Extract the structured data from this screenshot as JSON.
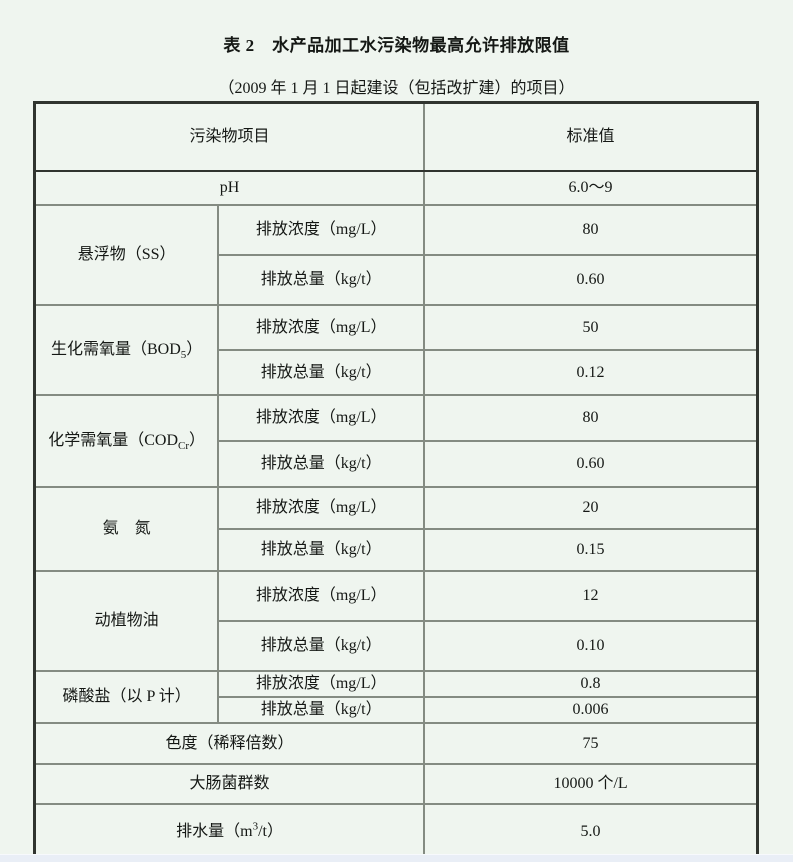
{
  "meta": {
    "page_bg_color": "#eff5ef",
    "bottom_strip_color": "#e9eef6",
    "table_border_color": "#848b82",
    "outer_border_color": "#30342f"
  },
  "title": "表 2　水产品加工水污染物最高允许排放限值",
  "subtitle": "（2009 年 1 月 1 日起建设（包括改扩建）的项目）",
  "table": {
    "header": {
      "pollutant_col": "污染物项目",
      "value_col": "标准值"
    },
    "ph": {
      "label": "pH",
      "value": "6.0～9"
    },
    "groups": [
      {
        "name": {
          "pre": "悬浮物（SS）",
          "sub": "",
          "post": ""
        },
        "concentration": {
          "label": "排放浓度（mg/L）",
          "value": "80"
        },
        "total": {
          "label": "排放总量（kg/t）",
          "value": "0.60"
        }
      },
      {
        "name": {
          "pre": "生化需氧量（BOD",
          "sub": "5",
          "post": "）"
        },
        "concentration": {
          "label": "排放浓度（mg/L）",
          "value": "50"
        },
        "total": {
          "label": "排放总量（kg/t）",
          "value": "0.12"
        }
      },
      {
        "name": {
          "pre": "化学需氧量（COD",
          "sub": "Cr",
          "post": "）"
        },
        "concentration": {
          "label": "排放浓度（mg/L）",
          "value": "80"
        },
        "total": {
          "label": "排放总量（kg/t）",
          "value": "0.60"
        }
      },
      {
        "name": {
          "pre": "氨　氮",
          "sub": "",
          "post": ""
        },
        "concentration": {
          "label": "排放浓度（mg/L）",
          "value": "20"
        },
        "total": {
          "label": "排放总量（kg/t）",
          "value": "0.15"
        }
      },
      {
        "name": {
          "pre": "动植物油",
          "sub": "",
          "post": ""
        },
        "concentration": {
          "label": "排放浓度（mg/L）",
          "value": "12"
        },
        "total": {
          "label": "排放总量（kg/t）",
          "value": "0.10"
        }
      },
      {
        "name": {
          "pre": "磷酸盐（以 P 计）",
          "sub": "",
          "post": ""
        },
        "concentration": {
          "label": "排放浓度（mg/L）",
          "value": "0.8"
        },
        "total": {
          "label": "排放总量（kg/t）",
          "value": "0.006"
        }
      }
    ],
    "footer_rows": [
      {
        "label": {
          "pre": "色度（稀释倍数）",
          "sup": "",
          "post": ""
        },
        "value": "75"
      },
      {
        "label": {
          "pre": "大肠菌群数",
          "sup": "",
          "post": ""
        },
        "value": "10000 个/L"
      },
      {
        "label": {
          "pre": "排水量（m",
          "sup": "3",
          "post": "/t）"
        },
        "value": "5.0"
      }
    ]
  }
}
